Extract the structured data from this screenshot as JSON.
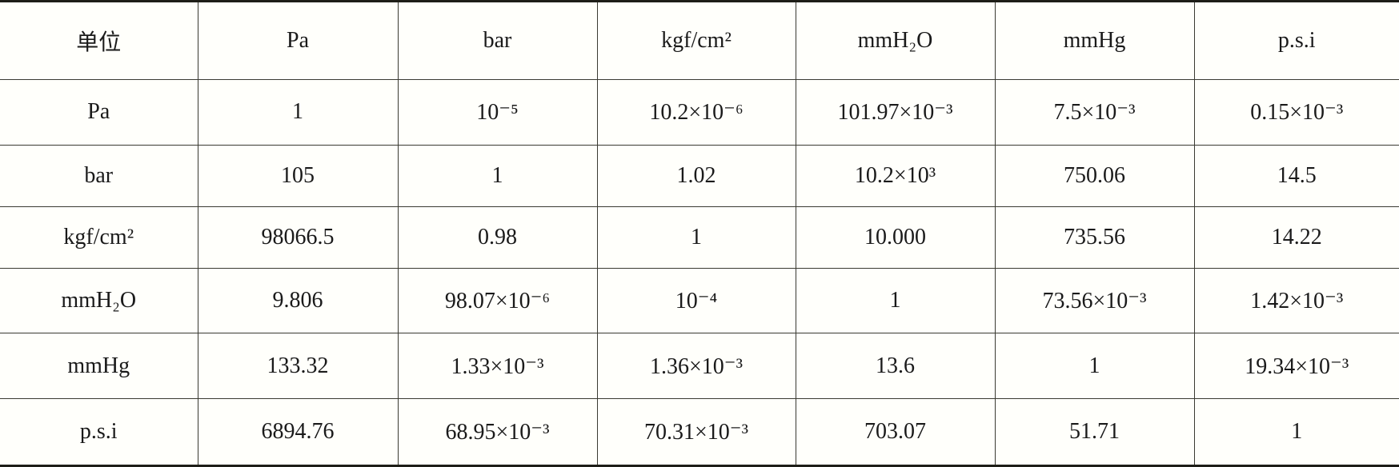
{
  "table": {
    "header": [
      "单位",
      "Pa",
      "bar",
      "kgf/cm²",
      "mmH₂O",
      "mmHg",
      "p.s.i"
    ],
    "rows": [
      [
        "Pa",
        "1",
        "10⁻⁵",
        "10.2×10⁻⁶",
        "101.97×10⁻³",
        "7.5×10⁻³",
        "0.15×10⁻³"
      ],
      [
        "bar",
        "105",
        "1",
        "1.02",
        "10.2×10³",
        "750.06",
        "14.5"
      ],
      [
        "kgf/cm²",
        "98066.5",
        "0.98",
        "1",
        "10.000",
        "735.56",
        "14.22"
      ],
      [
        "mmH₂O",
        "9.806",
        "98.07×10⁻⁶",
        "10⁻⁴",
        "1",
        "73.56×10⁻³",
        "1.42×10⁻³"
      ],
      [
        "mmHg",
        "133.32",
        "1.33×10⁻³",
        "1.36×10⁻³",
        "13.6",
        "1",
        "19.34×10⁻³"
      ],
      [
        "p.s.i",
        "6894.76",
        "68.95×10⁻³",
        "70.31×10⁻³",
        "703.07",
        "51.71",
        "1"
      ]
    ]
  }
}
